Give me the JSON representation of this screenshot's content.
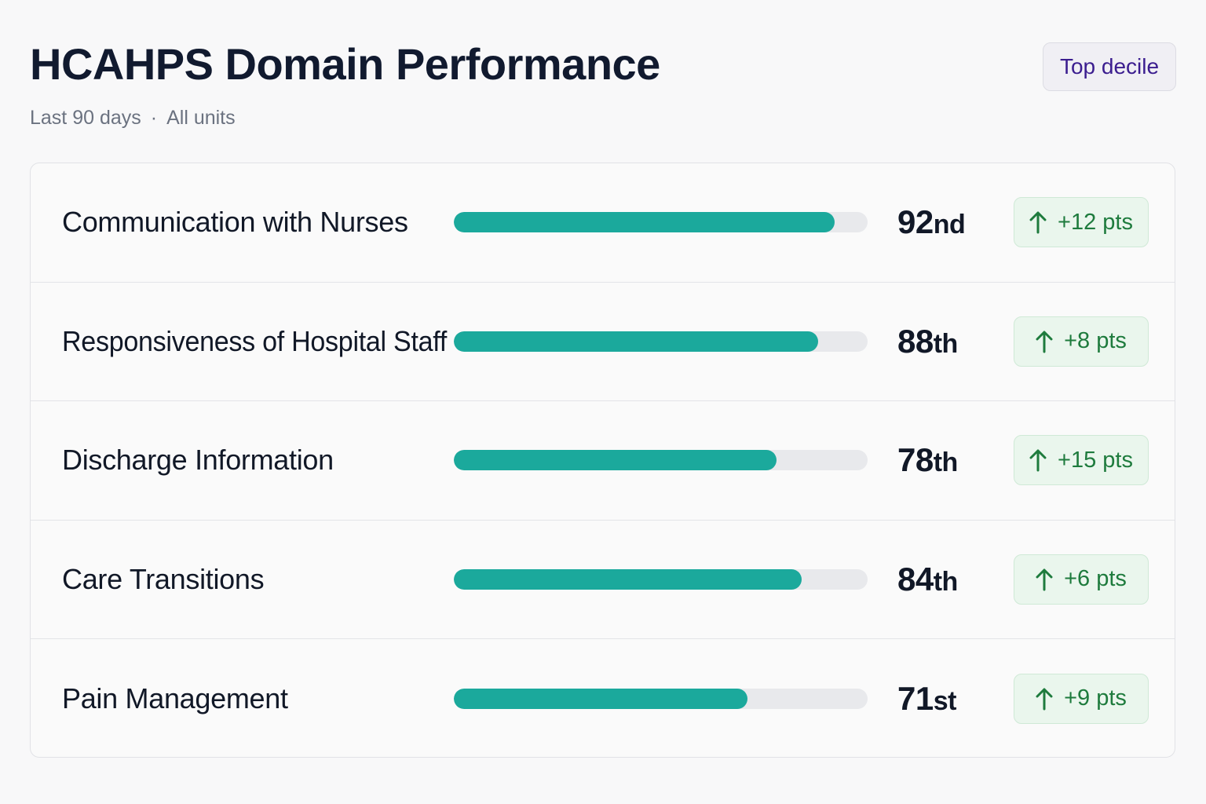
{
  "header": {
    "title": "HCAHPS Domain Performance",
    "period": "Last 90 days",
    "separator": "·",
    "scope": "All units",
    "badge": "Top decile"
  },
  "colors": {
    "bar_fill": "#1ba99c",
    "bar_track": "#e8e9ec",
    "delta_text": "#1e7b3d",
    "delta_bg": "#eaf6ed",
    "badge_text": "#3b1d8f"
  },
  "domains": [
    {
      "label": "Communication with Nurses",
      "percentile": 92,
      "rank_num": "92",
      "rank_suffix": "nd",
      "delta": "+12 pts",
      "delta_icon": "arrow-up-icon"
    },
    {
      "label": "Responsiveness of Hospital Staff",
      "percentile": 88,
      "rank_num": "88",
      "rank_suffix": "th",
      "delta": "+8 pts",
      "delta_icon": "arrow-up-icon"
    },
    {
      "label": "Discharge Information",
      "percentile": 78,
      "rank_num": "78",
      "rank_suffix": "th",
      "delta": "+15 pts",
      "delta_icon": "arrow-up-icon"
    },
    {
      "label": "Care Transitions",
      "percentile": 84,
      "rank_num": "84",
      "rank_suffix": "th",
      "delta": "+6 pts",
      "delta_icon": "arrow-up-icon"
    },
    {
      "label": "Pain Management",
      "percentile": 71,
      "rank_num": "71",
      "rank_suffix": "st",
      "delta": "+9 pts",
      "delta_icon": "arrow-up-icon"
    }
  ]
}
